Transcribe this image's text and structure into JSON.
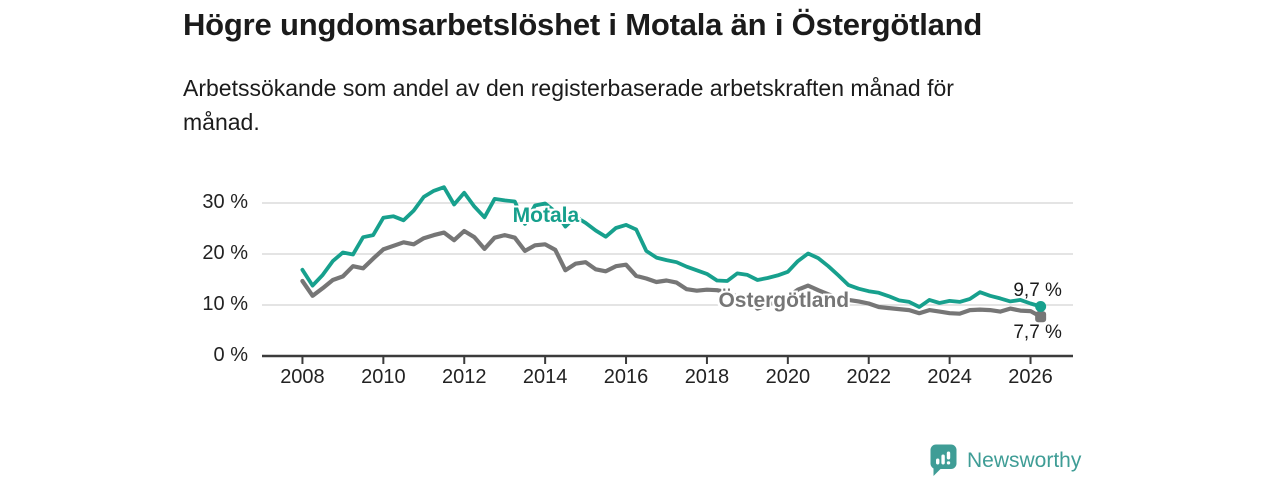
{
  "chart_data": {
    "type": "line",
    "title": "Högre ungdomsarbetslöshet i Motala än i Östergötland",
    "subtitle_lines": [
      "Arbetssökande som andel av den registerbaserade arbetskraften månad för",
      "månad."
    ],
    "xlabel": "",
    "ylabel": "",
    "unit": "%",
    "xlim": [
      2007.0,
      2027.05
    ],
    "ylim": [
      0,
      34.9
    ],
    "grid": "horizontal",
    "x_start": 2008.0,
    "x_step_years": 0.25,
    "x_ticks": [
      {
        "v": 2008,
        "label": "2008"
      },
      {
        "v": 2010,
        "label": "2010"
      },
      {
        "v": 2012,
        "label": "2012"
      },
      {
        "v": 2014,
        "label": "2014"
      },
      {
        "v": 2016,
        "label": "2016"
      },
      {
        "v": 2018,
        "label": "2018"
      },
      {
        "v": 2020,
        "label": "2020"
      },
      {
        "v": 2022,
        "label": "2022"
      },
      {
        "v": 2024,
        "label": "2024"
      },
      {
        "v": 2026,
        "label": "2026"
      }
    ],
    "y_ticks": [
      {
        "v": 0,
        "label": "0 %"
      },
      {
        "v": 10,
        "label": "10 %"
      },
      {
        "v": 20,
        "label": "20 %"
      },
      {
        "v": 30,
        "label": "30 %"
      }
    ],
    "colors": {
      "grid": "#dcdcdc",
      "axis": "#3b3b3b",
      "text": "#1b1b1b"
    },
    "series": [
      {
        "name": "Östergötland",
        "color": "#767676",
        "stroke_width": 4.2,
        "marker": "square",
        "end_label": "7,7 %",
        "end_label_dy": 16,
        "label_anchor": {
          "x": 2019.9,
          "y": 10.8
        },
        "values": [
          14.7,
          11.8,
          13.3,
          14.9,
          15.6,
          17.6,
          17.2,
          19.1,
          20.9,
          21.6,
          22.3,
          21.9,
          23.1,
          23.7,
          24.2,
          22.7,
          24.5,
          23.3,
          21.0,
          23.2,
          23.7,
          23.2,
          20.6,
          21.7,
          21.9,
          20.8,
          16.8,
          18.1,
          18.4,
          17.0,
          16.6,
          17.6,
          17.9,
          15.7,
          15.2,
          14.5,
          14.8,
          14.4,
          13.1,
          12.8,
          13.0,
          12.9,
          12.5,
          11.6,
          11.2,
          9.3,
          10.0,
          10.8,
          11.6,
          13.0,
          13.8,
          12.9,
          12.1,
          11.4,
          11.0,
          10.7,
          10.3,
          9.6,
          9.4,
          9.2,
          9.0,
          8.4,
          9.0,
          8.7,
          8.4,
          8.3,
          9.0,
          9.1,
          9.0,
          8.7,
          9.3,
          8.9,
          8.8,
          7.7
        ]
      },
      {
        "name": "Motala",
        "color": "#17a08d",
        "stroke_width": 3.8,
        "marker": "circle",
        "end_label": "9,7 %",
        "end_label_dy": -16,
        "label_anchor": {
          "x": 2014.02,
          "y": 27.5
        },
        "values": [
          16.9,
          13.8,
          15.9,
          18.6,
          20.3,
          19.9,
          23.3,
          23.7,
          27.1,
          27.4,
          26.6,
          28.5,
          31.2,
          32.4,
          33.1,
          29.7,
          32.0,
          29.3,
          27.2,
          30.8,
          30.5,
          30.3,
          25.9,
          29.5,
          29.9,
          28.3,
          25.4,
          27.3,
          26.1,
          24.6,
          23.4,
          25.1,
          25.7,
          24.8,
          20.6,
          19.3,
          18.8,
          18.4,
          17.5,
          16.8,
          16.1,
          14.8,
          14.7,
          16.2,
          15.9,
          14.9,
          15.3,
          15.8,
          16.5,
          18.6,
          20.1,
          19.2,
          17.6,
          15.8,
          13.9,
          13.2,
          12.7,
          12.4,
          11.7,
          10.9,
          10.6,
          9.6,
          11.0,
          10.4,
          10.8,
          10.6,
          11.2,
          12.5,
          11.8,
          11.3,
          10.7,
          11.0,
          10.3,
          9.7
        ]
      }
    ]
  },
  "footer": {
    "brand": "Newsworthy",
    "brand_color": "#3f9d96"
  }
}
